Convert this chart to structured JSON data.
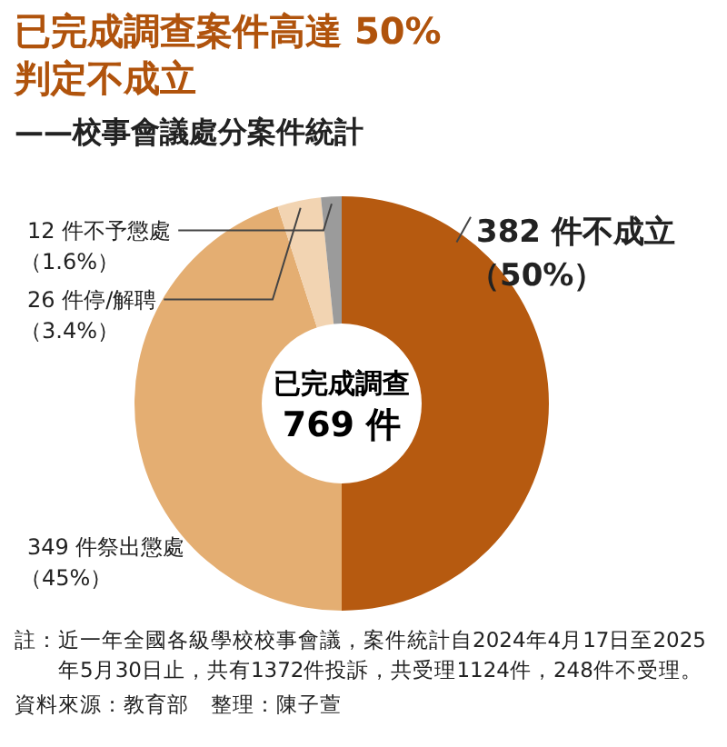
{
  "chart_data": {
    "type": "donut",
    "title": "已完成調查案件高達 50%\n判定不成立",
    "subtitle": "——校事會議處分案件統計",
    "categories": [
      "382 件不成立",
      "349 件祭出懲處",
      "26 件停/解聘",
      "12 件不予懲處"
    ],
    "values": [
      50,
      45,
      3.4,
      1.6
    ],
    "value_labels": [
      "（50%）",
      "（45%）",
      "（3.4%）",
      "（1.6%）"
    ],
    "colors": [
      "#b65a10",
      "#e4ae72",
      "#f2d4b2",
      "#9b9b9b"
    ],
    "annotations": [
      "已完成調查",
      "769 件",
      "註：近一年全國各級學校校事會議，案件統計自2024年4月17日至2025年5月30日止，共有1372件投訴，共受理1124件，248件不受理。",
      "資料來源：教育部　整理：陳子萱"
    ]
  }
}
